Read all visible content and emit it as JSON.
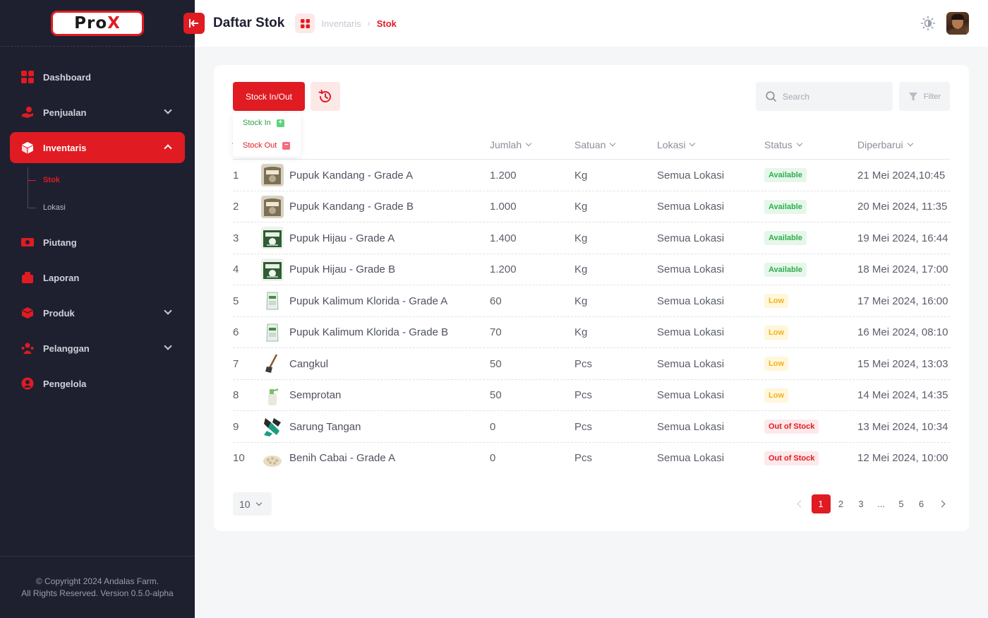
{
  "app": {
    "logo_text": "Pro",
    "logo_accent": "X",
    "accent_color": "#e01b22"
  },
  "sidebar": {
    "items": [
      {
        "label": "Dashboard",
        "icon": "grid-icon"
      },
      {
        "label": "Penjualan",
        "icon": "hand-coin-icon"
      },
      {
        "label": "Inventaris",
        "icon": "cube-icon"
      },
      {
        "label": "Piutang",
        "icon": "money-icon"
      },
      {
        "label": "Laporan",
        "icon": "report-icon"
      },
      {
        "label": "Produk",
        "icon": "box-icon"
      },
      {
        "label": "Pelanggan",
        "icon": "customers-icon"
      },
      {
        "label": "Pengelola",
        "icon": "user-icon"
      }
    ],
    "sub_items": [
      "Stok",
      "Lokasi"
    ],
    "copyright_line1": "© Copyright 2024 Andalas Farm.",
    "copyright_line2": "All Rights Reserved. Version 0.5.0-alpha"
  },
  "header": {
    "title": "Daftar Stok",
    "breadcrumb": [
      "Inventaris",
      "Stok"
    ]
  },
  "toolbar": {
    "stock_button": "Stock In/Out",
    "stock_in": "Stock In",
    "stock_out": "Stock Out",
    "search_placeholder": "Search",
    "filter_label": "Filter"
  },
  "table": {
    "columns": [
      "Jumlah",
      "Satuan",
      "Lokasi",
      "Status",
      "Diperbarui"
    ],
    "rows": [
      {
        "no": "1",
        "name": "Pupuk Kandang - Grade A",
        "qty": "1.200",
        "unit": "Kg",
        "loc": "Semua Lokasi",
        "status": "Available",
        "updated": "21 Mei 2024,10:45",
        "thumb": "sack"
      },
      {
        "no": "2",
        "name": "Pupuk Kandang - Grade B",
        "qty": "1.000",
        "unit": "Kg",
        "loc": "Semua Lokasi",
        "status": "Available",
        "updated": "20 Mei 2024, 11:35",
        "thumb": "sack"
      },
      {
        "no": "3",
        "name": "Pupuk Hijau - Grade A",
        "qty": "1.400",
        "unit": "Kg",
        "loc": "Semua Lokasi",
        "status": "Available",
        "updated": "19 Mei 2024, 16:44",
        "thumb": "green"
      },
      {
        "no": "4",
        "name": "Pupuk Hijau - Grade B",
        "qty": "1.200",
        "unit": "Kg",
        "loc": "Semua Lokasi",
        "status": "Available",
        "updated": "18 Mei 2024, 17:00",
        "thumb": "green"
      },
      {
        "no": "5",
        "name": "Pupuk Kalimum Klorida - Grade A",
        "qty": "60",
        "unit": "Kg",
        "loc": "Semua Lokasi",
        "status": "Low",
        "updated": "17 Mei 2024, 16:00",
        "thumb": "bag"
      },
      {
        "no": "6",
        "name": "Pupuk Kalimum Klorida - Grade B",
        "qty": "70",
        "unit": "Kg",
        "loc": "Semua Lokasi",
        "status": "Low",
        "updated": "16 Mei 2024, 08:10",
        "thumb": "bag"
      },
      {
        "no": "7",
        "name": "Cangkul",
        "qty": "50",
        "unit": "Pcs",
        "loc": "Semua Lokasi",
        "status": "Low",
        "updated": "15 Mei 2024, 13:03",
        "thumb": "hoe"
      },
      {
        "no": "8",
        "name": "Semprotan",
        "qty": "50",
        "unit": "Pcs",
        "loc": "Semua Lokasi",
        "status": "Low",
        "updated": "14 Mei 2024, 14:35",
        "thumb": "sprayer"
      },
      {
        "no": "9",
        "name": "Sarung Tangan",
        "qty": "0",
        "unit": "Pcs",
        "loc": "Semua Lokasi",
        "status": "Out of Stock",
        "updated": "13 Mei 2024, 10:34",
        "thumb": "gloves"
      },
      {
        "no": "10",
        "name": "Benih Cabai - Grade A",
        "qty": "0",
        "unit": "Pcs",
        "loc": "Semua Lokasi",
        "status": "Out of Stock",
        "updated": "12 Mei 2024, 10:00",
        "thumb": "seeds"
      }
    ]
  },
  "pagination": {
    "per_page": "10",
    "pages": [
      "1",
      "2",
      "3",
      "...",
      "5",
      "6"
    ],
    "current": "1"
  }
}
